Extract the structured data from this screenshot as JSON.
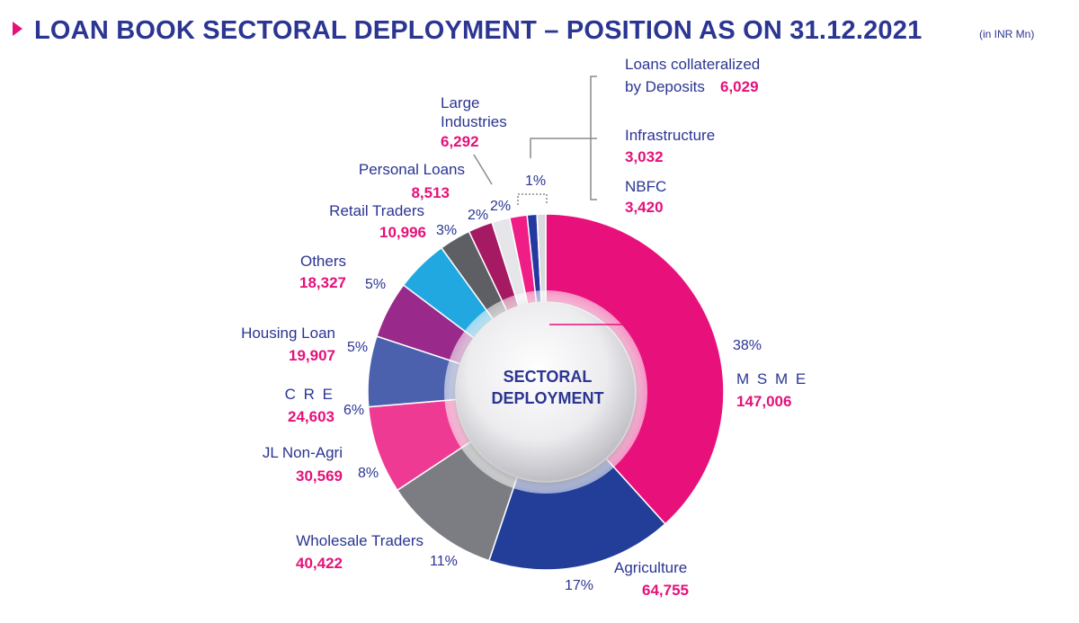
{
  "header": {
    "title": "LOAN BOOK SECTORAL DEPLOYMENT – POSITION AS ON 31.12.2021",
    "units": "(in INR Mn)"
  },
  "chart_data": {
    "type": "pie",
    "style": "donut",
    "center_label": [
      "SECTORAL",
      "DEPLOYMENT"
    ],
    "slices": [
      {
        "label": "M S M E",
        "value": 147006,
        "percent": "38%",
        "color": "#e8117c"
      },
      {
        "label": "Agriculture",
        "value": 64755,
        "percent": "17%",
        "color": "#223e99"
      },
      {
        "label": "Wholesale Traders",
        "value": 40422,
        "percent": "11%",
        "color": "#7c7d82"
      },
      {
        "label": "JL Non-Agri",
        "value": 30569,
        "percent": "8%",
        "color": "#ee3a93"
      },
      {
        "label": "C R E",
        "value": 24603,
        "percent": "6%",
        "color": "#4b61ae"
      },
      {
        "label": "Housing Loan",
        "value": 19907,
        "percent": "5%",
        "color": "#992a8b"
      },
      {
        "label": "Others",
        "value": 18327,
        "percent": "5%",
        "color": "#22a8e0"
      },
      {
        "label": "Retail Traders",
        "value": 10996,
        "percent": "3%",
        "color": "#5e5f64"
      },
      {
        "label": "Personal Loans",
        "value": 8513,
        "percent": "2%",
        "color": "#a51a62"
      },
      {
        "label": "Large Industries",
        "value": 6292,
        "percent": "2%",
        "color": "#e6e6ea"
      },
      {
        "label": "Loans collateralized by Deposits",
        "value": 6029,
        "percent": "",
        "color": "#ef1d85"
      },
      {
        "label": "NBFC",
        "value": 3420,
        "percent": "",
        "color": "#2438a0"
      },
      {
        "label": "Infrastructure",
        "value": 3032,
        "percent": "",
        "color": "#d9d9de"
      }
    ],
    "group_percent": "1%"
  },
  "labels": {
    "msme": {
      "name": "M S M E",
      "value": "147,006",
      "percent": "38%"
    },
    "agriculture": {
      "name": "Agriculture",
      "value": "64,755",
      "percent": "17%"
    },
    "wholesale_traders": {
      "name": "Wholesale Traders",
      "value": "40,422",
      "percent": "11%"
    },
    "jl_non_agri": {
      "name": "JL Non-Agri",
      "value": "30,569",
      "percent": "8%"
    },
    "cre": {
      "name": "C R E",
      "value": "24,603",
      "percent": "6%"
    },
    "housing_loan": {
      "name": "Housing Loan",
      "value": "19,907",
      "percent": "5%"
    },
    "others": {
      "name": "Others",
      "value": "18,327",
      "percent": "5%"
    },
    "retail_traders": {
      "name": "Retail Traders",
      "value": "10,996",
      "percent": "3%"
    },
    "personal_loans": {
      "name": "Personal Loans",
      "value": "8,513",
      "percent": "2%"
    },
    "large_industries": {
      "name_line1": "Large",
      "name_line2": "Industries",
      "value": "6,292",
      "percent": "2%"
    },
    "loans_deposits": {
      "name_line1": "Loans collateralized",
      "name_line2": "by Deposits",
      "value": "6,029"
    },
    "infrastructure": {
      "name": "Infrastructure",
      "value": "3,032"
    },
    "nbfc": {
      "name": "NBFC",
      "value": "3,420"
    },
    "group_pct": "1%",
    "center_line1": "SECTORAL",
    "center_line2": "DEPLOYMENT"
  }
}
